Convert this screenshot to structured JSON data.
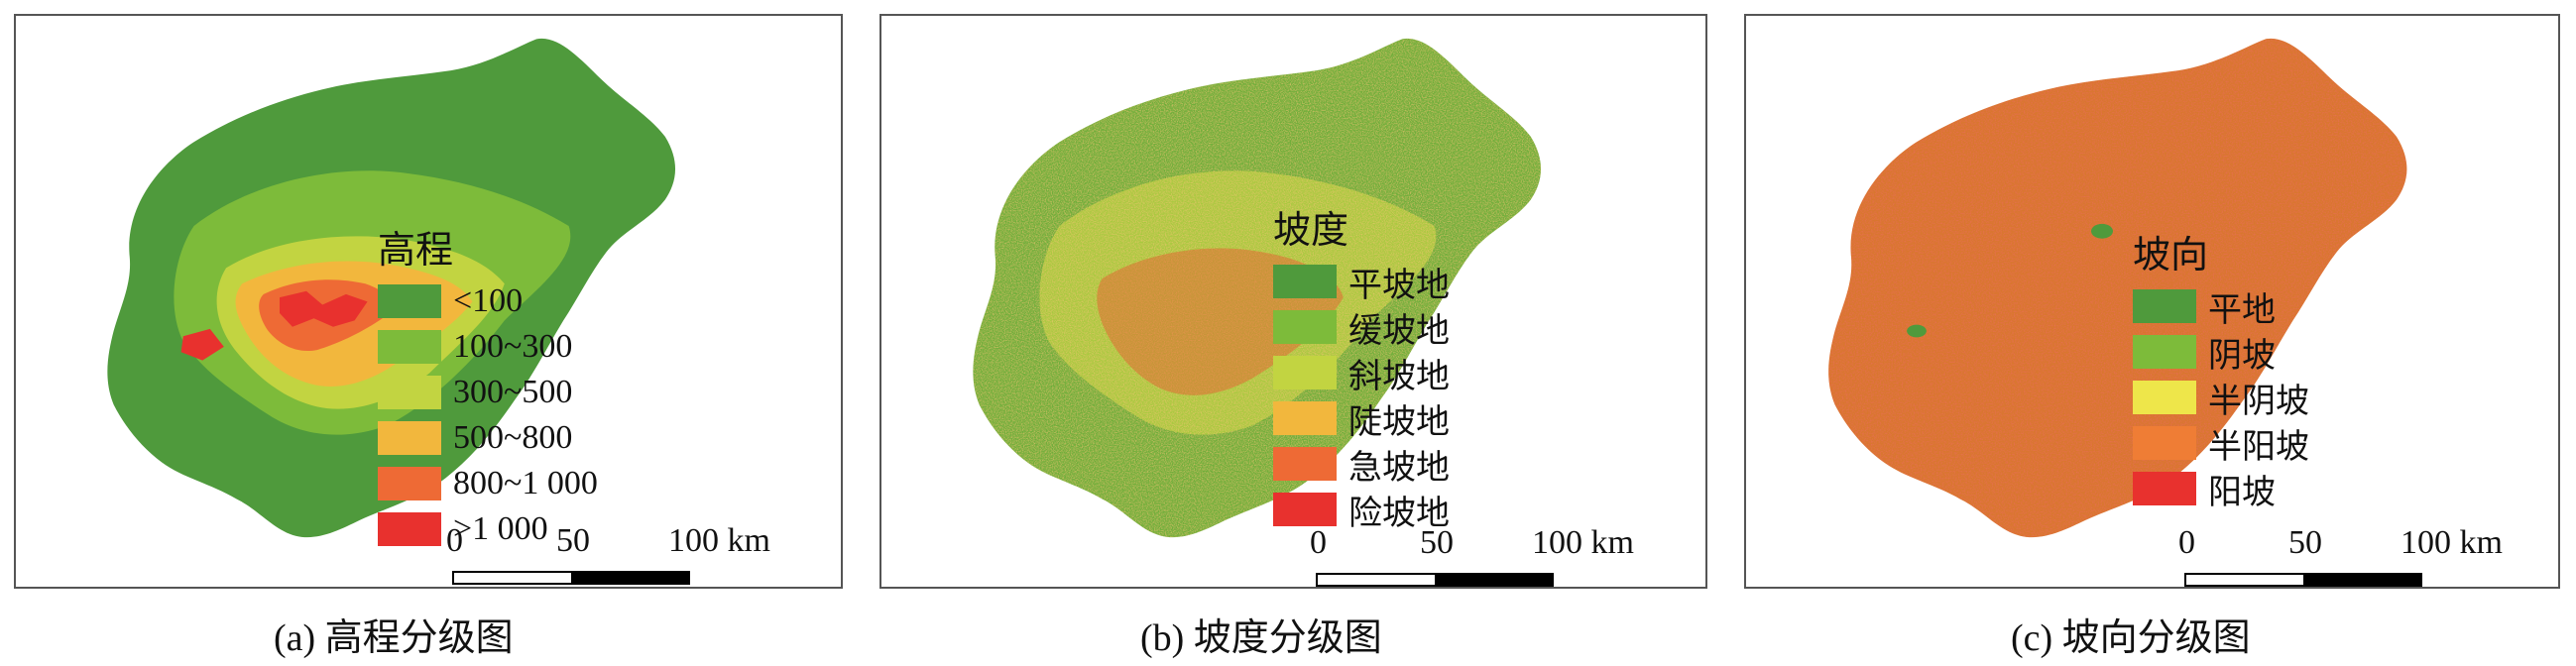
{
  "panels": [
    {
      "id": "a",
      "map_type": "elevation classes",
      "legend": {
        "title": "高程",
        "items": [
          {
            "label": "<100",
            "color": "#4f9a3c"
          },
          {
            "label": "100~300",
            "color": "#7dbb3a"
          },
          {
            "label": "300~500",
            "color": "#c2d441"
          },
          {
            "label": "500~800",
            "color": "#f2b73d"
          },
          {
            "label": "800~1 000",
            "color": "#ee6a35"
          },
          {
            "label": ">1 000",
            "color": "#e8312e"
          }
        ]
      },
      "scalebar": {
        "zero": "0",
        "mid": "50",
        "end": "100 km"
      },
      "caption": "(a) 高程分级图"
    },
    {
      "id": "b",
      "map_type": "slope classes",
      "legend": {
        "title": "坡度",
        "items": [
          {
            "label": "平坡地",
            "color": "#4f9a3c"
          },
          {
            "label": "缓坡地",
            "color": "#7dbb3a"
          },
          {
            "label": "斜坡地",
            "color": "#c2d441"
          },
          {
            "label": "陡坡地",
            "color": "#f2b73d"
          },
          {
            "label": "急坡地",
            "color": "#ee6a35"
          },
          {
            "label": "险坡地",
            "color": "#e8312e"
          }
        ]
      },
      "scalebar": {
        "zero": "0",
        "mid": "50",
        "end": "100 km"
      },
      "caption": "(b) 坡度分级图"
    },
    {
      "id": "c",
      "map_type": "aspect classes",
      "legend": {
        "title": "坡向",
        "items": [
          {
            "label": "平地",
            "color": "#4f9a3c"
          },
          {
            "label": "阴坡",
            "color": "#7dbb3a"
          },
          {
            "label": "半阴坡",
            "color": "#eee64a"
          },
          {
            "label": "半阳坡",
            "color": "#ef7d35"
          },
          {
            "label": "阳坡",
            "color": "#e8312e"
          }
        ]
      },
      "scalebar": {
        "zero": "0",
        "mid": "50",
        "end": "100 km"
      },
      "caption": "(c) 坡向分级图"
    }
  ]
}
